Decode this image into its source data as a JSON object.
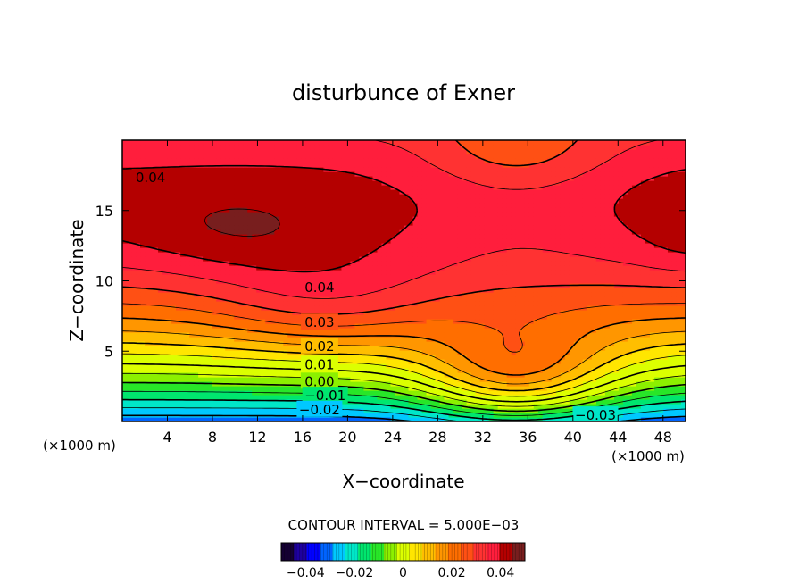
{
  "chart_data": {
    "type": "contour",
    "title": "disturbunce of Exner",
    "xlabel": "X−coordinate",
    "ylabel": "Z−coordinate",
    "x_unit_label": "(×1000 m)",
    "xlim": [
      0,
      50
    ],
    "ylim": [
      0,
      20
    ],
    "x_ticks": [
      4,
      8,
      12,
      16,
      20,
      24,
      28,
      32,
      36,
      40,
      44,
      48
    ],
    "y_ticks": [
      5,
      10,
      15
    ],
    "contour_interval_text": "CONTOUR INTERVAL = 5.000E−03",
    "contour_interval": 0.005,
    "contour_levels": [
      -0.035,
      -0.03,
      -0.025,
      -0.02,
      -0.015,
      -0.01,
      -0.005,
      0.0,
      0.005,
      0.01,
      0.015,
      0.02,
      0.025,
      0.03,
      0.035,
      0.04,
      0.045
    ],
    "major_levels": [
      -0.03,
      -0.02,
      -0.01,
      0.0,
      0.01,
      0.02,
      0.03,
      0.04
    ],
    "contour_labels": [
      {
        "text": "0.04",
        "x": 2.5,
        "y": 17.4
      },
      {
        "text": "0.04",
        "x": 17.5,
        "y": 9.6
      },
      {
        "text": "0.03",
        "x": 17.5,
        "y": 7.1
      },
      {
        "text": "0.02",
        "x": 17.5,
        "y": 5.4
      },
      {
        "text": "0.01",
        "x": 17.5,
        "y": 4.1
      },
      {
        "text": "0.00",
        "x": 17.5,
        "y": 2.9
      },
      {
        "text": "−0.01",
        "x": 18.0,
        "y": 1.9
      },
      {
        "text": "−0.02",
        "x": 17.5,
        "y": 0.9
      },
      {
        "text": "−0.03",
        "x": 42.0,
        "y": 0.5
      }
    ],
    "field_description": "Exner pressure disturbance: strong negative minimum near the surface around x=35 km, increasing upward to maxima (~0.045) near z=13 km on both lateral sides, with a saddle near x=36, z=15 km",
    "colorbar": {
      "min": -0.05,
      "max": 0.05,
      "tick_values": [
        -0.04,
        -0.02,
        0,
        0.02,
        0.04
      ],
      "tick_labels": [
        "−0.04",
        "−0.02",
        "0",
        "0.02",
        "0.04"
      ],
      "colors": [
        "#140032",
        "#1e00a0",
        "#0000ff",
        "#0064ff",
        "#00c8ff",
        "#00e6c8",
        "#00e66e",
        "#28e628",
        "#8cf000",
        "#dcff00",
        "#ffe600",
        "#ffbe00",
        "#ff9600",
        "#ff6e00",
        "#ff5014",
        "#ff3232",
        "#ff1e3c",
        "#b40000",
        "#781e1e"
      ]
    }
  }
}
